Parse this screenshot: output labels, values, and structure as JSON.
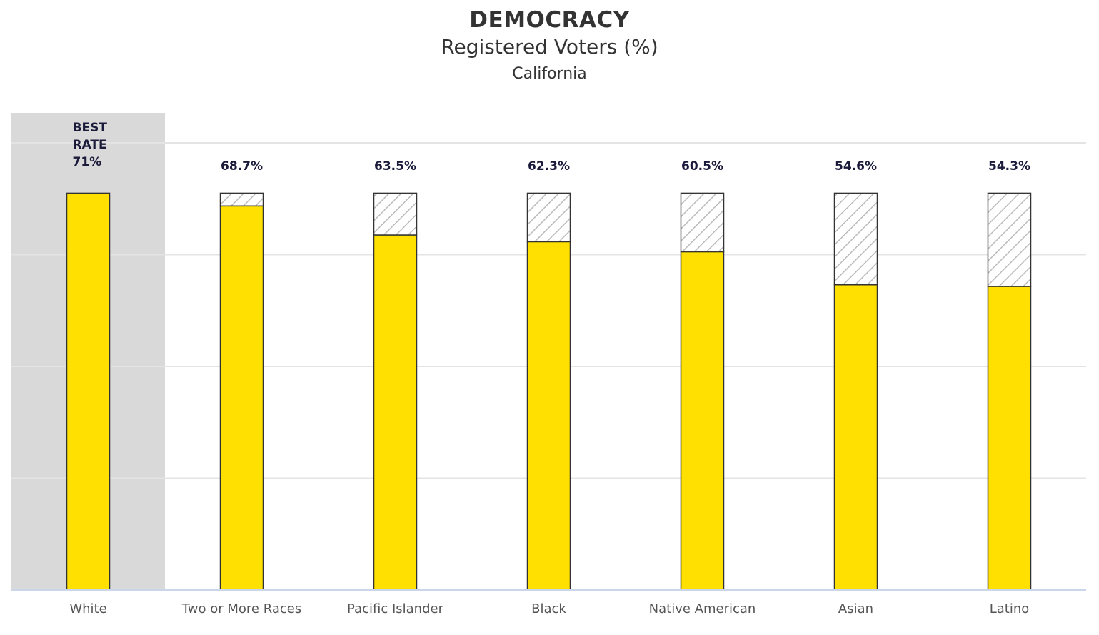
{
  "chart_data": {
    "type": "bar",
    "title": "DEMOCRACY",
    "subtitle": "Registered Voters (%)",
    "region": "California",
    "categories": [
      "White",
      "Two or More Races",
      "Pacific Islander",
      "Black",
      "Native American",
      "Asian",
      "Latino"
    ],
    "values": [
      71,
      68.7,
      63.5,
      62.3,
      60.5,
      54.6,
      54.3
    ],
    "value_labels": [
      "71%",
      "68.7%",
      "63.5%",
      "62.3%",
      "60.5%",
      "54.6%",
      "54.3%"
    ],
    "best": {
      "category": "White",
      "label_line1": "BEST",
      "label_line2": "RATE",
      "value": 71
    },
    "gap_to_best_hatched": true,
    "ylim": [
      0,
      80
    ],
    "grid": true,
    "colors": {
      "bar": "#FFE000",
      "bar_outline": "#333333",
      "best_highlight": "#D9D9D9",
      "hatch": "#BBBBBB",
      "grid": "#E4E4E4",
      "axis": "#CCD6EB",
      "label": "#1a1a3a"
    }
  }
}
